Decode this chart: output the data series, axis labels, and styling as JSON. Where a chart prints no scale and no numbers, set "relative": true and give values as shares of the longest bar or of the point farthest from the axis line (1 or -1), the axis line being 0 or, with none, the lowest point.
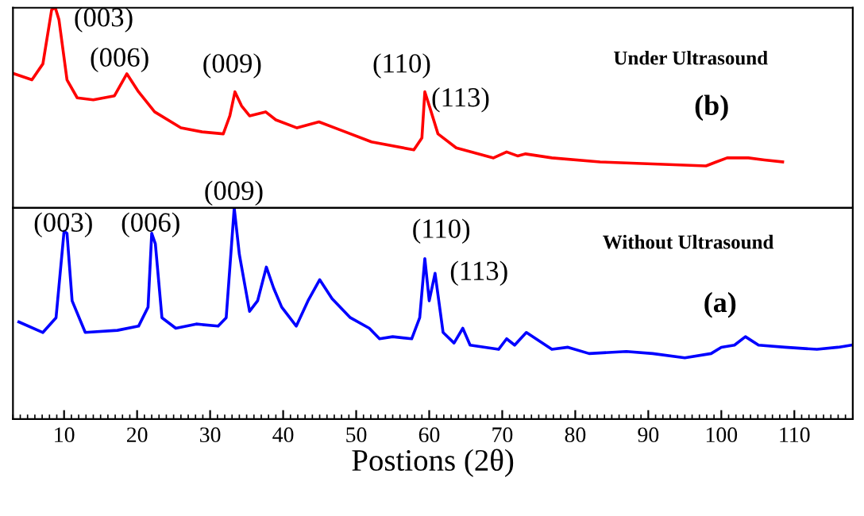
{
  "chart_data": [
    {
      "type": "line",
      "relative": true,
      "xlim": [
        3,
        118
      ],
      "tick_labels": false,
      "grid": false,
      "legend": false,
      "series": [
        {
          "color": "#ff0000",
          "x": [
            3.2,
            5.6,
            7.1,
            8.3,
            8.8,
            9.3,
            10.4,
            11.8,
            14.0,
            16.9,
            18.6,
            20.2,
            22.4,
            26.0,
            28.9,
            31.8,
            32.7,
            33.4,
            34.3,
            35.4,
            37.6,
            39.0,
            41.9,
            44.9,
            47.8,
            52.1,
            57.9,
            59.0,
            59.4,
            60.1,
            61.2,
            63.7,
            68.8,
            70.6,
            72.1,
            73.2,
            76.8,
            83.4,
            90.6,
            97.9,
            99.3,
            100.8,
            103.7,
            105.9,
            108.4
          ],
          "values": [
            0.67,
            0.64,
            0.72,
            0.99,
            1.0,
            0.94,
            0.64,
            0.55,
            0.54,
            0.56,
            0.67,
            0.58,
            0.48,
            0.4,
            0.38,
            0.37,
            0.46,
            0.58,
            0.51,
            0.46,
            0.48,
            0.44,
            0.4,
            0.43,
            0.39,
            0.33,
            0.29,
            0.35,
            0.58,
            0.5,
            0.37,
            0.3,
            0.25,
            0.28,
            0.26,
            0.27,
            0.25,
            0.23,
            0.22,
            0.21,
            0.23,
            0.25,
            0.25,
            0.24,
            0.23
          ]
        }
      ],
      "annotations": [
        "(003)",
        "(006)",
        "(009)",
        "(110)",
        "(113)",
        "Under Ultrasound",
        "(b)"
      ]
    },
    {
      "type": "line",
      "relative": true,
      "xlim": [
        3,
        118
      ],
      "xticks": [
        10,
        20,
        30,
        40,
        50,
        60,
        70,
        80,
        90,
        100,
        110
      ],
      "tick_labels": "x",
      "xlabel": "Postions (2θ)",
      "grid": false,
      "legend": false,
      "series": [
        {
          "color": "#0000ff",
          "x": [
            3.8,
            7.1,
            8.9,
            10.0,
            10.4,
            11.1,
            12.9,
            17.3,
            20.2,
            21.5,
            22.0,
            22.5,
            23.4,
            25.3,
            28.1,
            31.1,
            32.2,
            33.3,
            34.0,
            35.4,
            36.5,
            37.7,
            38.7,
            39.8,
            41.8,
            43.4,
            45.0,
            46.7,
            49.2,
            51.8,
            53.2,
            55.0,
            57.6,
            58.7,
            59.4,
            60.0,
            60.8,
            61.9,
            63.4,
            64.6,
            65.6,
            69.5,
            70.6,
            71.7,
            73.3,
            76.8,
            79.0,
            81.9,
            87.0,
            90.6,
            95.0,
            98.6,
            100.0,
            101.8,
            103.3,
            105.1,
            108.7,
            113.1,
            116.0,
            117.8
          ],
          "values": [
            0.46,
            0.41,
            0.48,
            0.89,
            0.88,
            0.56,
            0.41,
            0.42,
            0.44,
            0.53,
            0.88,
            0.83,
            0.48,
            0.43,
            0.45,
            0.44,
            0.48,
            1.0,
            0.78,
            0.51,
            0.56,
            0.72,
            0.62,
            0.53,
            0.44,
            0.56,
            0.66,
            0.57,
            0.48,
            0.43,
            0.38,
            0.39,
            0.38,
            0.48,
            0.76,
            0.56,
            0.69,
            0.41,
            0.36,
            0.43,
            0.35,
            0.33,
            0.38,
            0.35,
            0.41,
            0.33,
            0.34,
            0.31,
            0.32,
            0.31,
            0.29,
            0.31,
            0.34,
            0.35,
            0.39,
            0.35,
            0.34,
            0.33,
            0.34,
            0.35
          ]
        }
      ],
      "annotations": [
        "(009)",
        "(003)",
        "(006)",
        "(110)",
        "(113)",
        "Without Ultrasound",
        "(a)"
      ]
    }
  ]
}
